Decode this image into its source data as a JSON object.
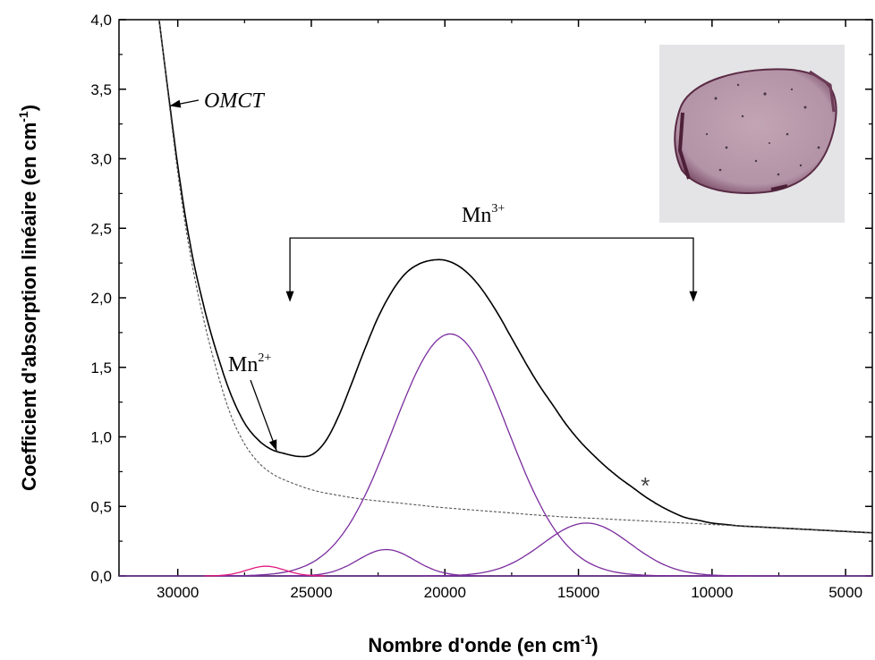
{
  "chart_data": {
    "type": "line",
    "xlabel": "Nombre d'onde (en cm",
    "xlabel_sup": "-1",
    "xlabel_end": ")",
    "ylabel": "Coefficient d'absorption linéaire (en cm",
    "ylabel_sup": "-1",
    "ylabel_end": ")",
    "xlim": [
      32200,
      4000
    ],
    "ylim": [
      0,
      4.0
    ],
    "x_reversed": true,
    "x_ticks": [
      30000,
      25000,
      20000,
      15000,
      10000,
      5000
    ],
    "x_tick_labels": [
      "30000",
      "25000",
      "20000",
      "15000",
      "10000",
      "5000"
    ],
    "y_ticks": [
      0,
      0.5,
      1.0,
      1.5,
      2.0,
      2.5,
      3.0,
      3.5,
      4.0
    ],
    "y_tick_labels": [
      "0,0",
      "0,5",
      "1,0",
      "1,5",
      "2,0",
      "2,5",
      "3,0",
      "3,5",
      "4,0"
    ],
    "colors": {
      "spectrum": "#000000",
      "baseline": "#555555",
      "mn3_bands": "#7b2d9e",
      "mn2_band": "#e0197f",
      "axis_zero": "#6a2a8a"
    },
    "series": [
      {
        "role": "measured-spectrum",
        "x": [
          30700,
          30000,
          29500,
          29000,
          28500,
          28000,
          27500,
          27000,
          26500,
          26000,
          25500,
          25000,
          24500,
          24000,
          23500,
          23000,
          22500,
          22000,
          21500,
          21000,
          20500,
          20000,
          19500,
          19000,
          18500,
          18000,
          17500,
          17000,
          16500,
          16000,
          15500,
          15000,
          14500,
          14000,
          13500,
          13000,
          12500,
          12000,
          11500,
          11000,
          10500,
          10000,
          9500,
          9000,
          8500,
          8000,
          7500,
          7000,
          6500,
          6000,
          5500,
          5000,
          4500,
          4000
        ],
        "y": [
          4.0,
          2.95,
          2.35,
          1.92,
          1.58,
          1.3,
          1.1,
          0.98,
          0.91,
          0.88,
          0.86,
          0.87,
          0.96,
          1.14,
          1.38,
          1.63,
          1.86,
          2.04,
          2.17,
          2.24,
          2.27,
          2.27,
          2.23,
          2.15,
          2.03,
          1.88,
          1.71,
          1.54,
          1.38,
          1.24,
          1.1,
          0.98,
          0.88,
          0.79,
          0.71,
          0.64,
          0.57,
          0.51,
          0.46,
          0.42,
          0.4,
          0.38,
          0.37,
          0.36,
          0.355,
          0.35,
          0.345,
          0.34,
          0.335,
          0.33,
          0.325,
          0.32,
          0.315,
          0.31
        ]
      },
      {
        "role": "baseline-fit",
        "x": [
          30700,
          30000,
          29500,
          29000,
          28500,
          28000,
          27500,
          27000,
          26500,
          26000,
          25000,
          24000,
          23000,
          22000,
          21000,
          20000,
          18000,
          16000,
          14000,
          12000,
          10000,
          8000,
          6000,
          4000
        ],
        "y": [
          4.0,
          2.9,
          2.28,
          1.82,
          1.45,
          1.15,
          0.95,
          0.82,
          0.74,
          0.69,
          0.62,
          0.58,
          0.55,
          0.53,
          0.51,
          0.49,
          0.46,
          0.43,
          0.41,
          0.39,
          0.37,
          0.35,
          0.33,
          0.31
        ]
      },
      {
        "role": "mn3-band-main",
        "type": "gaussian",
        "center": 19800,
        "amplitude": 1.74,
        "sigma": 2150,
        "x_range": [
          29000,
          9000
        ]
      },
      {
        "role": "mn3-band-high",
        "type": "gaussian",
        "center": 22200,
        "amplitude": 0.19,
        "sigma": 1050,
        "x_range": [
          26000,
          18500
        ]
      },
      {
        "role": "mn3-band-low",
        "type": "gaussian",
        "center": 14700,
        "amplitude": 0.38,
        "sigma": 1650,
        "x_range": [
          21000,
          7500
        ]
      },
      {
        "role": "mn2-band",
        "type": "gaussian",
        "center": 26700,
        "amplitude": 0.07,
        "sigma": 700,
        "x_range": [
          29000,
          24500
        ]
      }
    ],
    "annotations": {
      "omct": {
        "text": "OMCT",
        "arrow_to": [
          30300,
          3.38
        ]
      },
      "mn2": {
        "text": "Mn",
        "sup": "2+",
        "arrow_to": [
          26300,
          0.9
        ]
      },
      "mn3": {
        "text": "Mn",
        "sup": "3+",
        "bracket_from": 25800,
        "bracket_to": 10700,
        "bracket_y": 2.43,
        "arrow_tip_y": 1.97
      },
      "star": {
        "text": "*",
        "at": [
          12400,
          0.67
        ]
      }
    },
    "inset_photo": {
      "description_icon": "pink-glass-sample-photo-icon",
      "glass_color": "#b89aab"
    }
  }
}
